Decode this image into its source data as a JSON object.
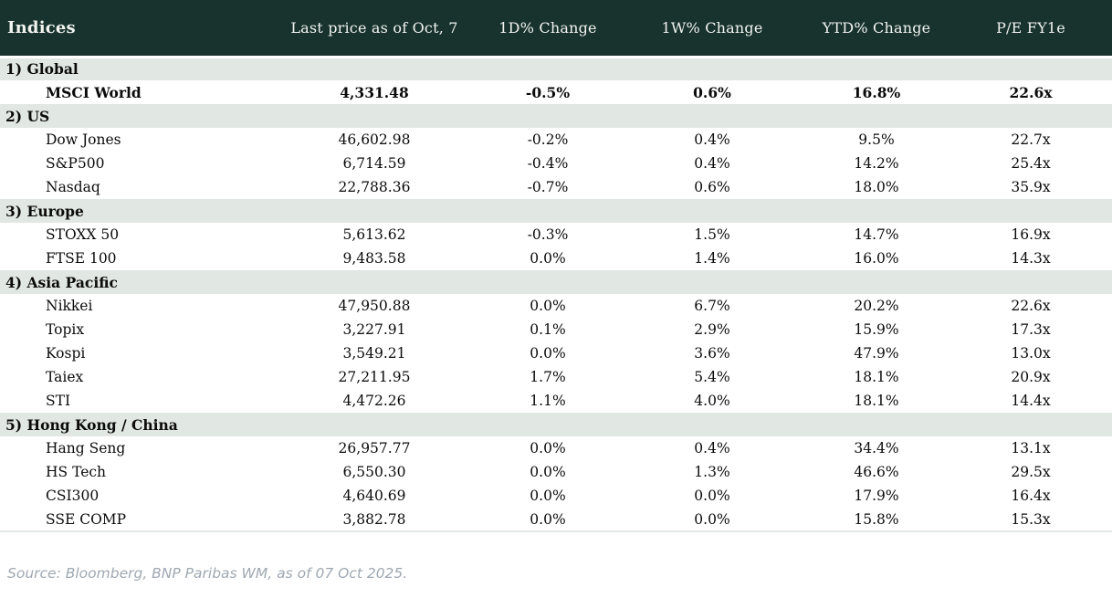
{
  "colors": {
    "header_bg": "#18332e",
    "header_text": "#f1f3ef",
    "section_bg": "#e1e7e3",
    "positive": "#008a28",
    "negative": "#c00010",
    "neutral": "#0b0b0b",
    "footer_text": "#9fa8b2"
  },
  "table": {
    "columns": [
      "Indices",
      "Last price as of Oct, 7",
      "1D% Change",
      "1W% Change",
      "YTD% Change",
      "P/E FY1e"
    ],
    "sections": [
      {
        "label": "1) Global",
        "rows": [
          {
            "name": "MSCI World",
            "bold": true,
            "last_price": "4,331.48",
            "d1": {
              "v": "-0.5%",
              "c": "neg"
            },
            "w1": {
              "v": "0.6%",
              "c": "pos"
            },
            "ytd": {
              "v": "16.8%",
              "c": "pos"
            },
            "pe": "22.6x"
          }
        ]
      },
      {
        "label": "2) US",
        "rows": [
          {
            "name": "Dow Jones",
            "bold": false,
            "last_price": "46,602.98",
            "d1": {
              "v": "-0.2%",
              "c": "neg"
            },
            "w1": {
              "v": "0.4%",
              "c": "pos"
            },
            "ytd": {
              "v": "9.5%",
              "c": "pos"
            },
            "pe": "22.7x"
          },
          {
            "name": "S&P500",
            "bold": false,
            "last_price": "6,714.59",
            "d1": {
              "v": "-0.4%",
              "c": "neg"
            },
            "w1": {
              "v": "0.4%",
              "c": "pos"
            },
            "ytd": {
              "v": "14.2%",
              "c": "pos"
            },
            "pe": "25.4x"
          },
          {
            "name": "Nasdaq",
            "bold": false,
            "last_price": "22,788.36",
            "d1": {
              "v": "-0.7%",
              "c": "neg"
            },
            "w1": {
              "v": "0.6%",
              "c": "pos"
            },
            "ytd": {
              "v": "18.0%",
              "c": "pos"
            },
            "pe": "35.9x"
          }
        ]
      },
      {
        "label": "3) Europe",
        "rows": [
          {
            "name": "STOXX 50",
            "bold": false,
            "last_price": "5,613.62",
            "d1": {
              "v": "-0.3%",
              "c": "neg"
            },
            "w1": {
              "v": "1.5%",
              "c": "pos"
            },
            "ytd": {
              "v": "14.7%",
              "c": "pos"
            },
            "pe": "16.9x"
          },
          {
            "name": "FTSE 100",
            "bold": false,
            "last_price": "9,483.58",
            "d1": {
              "v": "0.0%",
              "c": "pos"
            },
            "w1": {
              "v": "1.4%",
              "c": "pos"
            },
            "ytd": {
              "v": "16.0%",
              "c": "pos"
            },
            "pe": "14.3x"
          }
        ]
      },
      {
        "label": "4) Asia Pacific",
        "rows": [
          {
            "name": "Nikkei",
            "bold": false,
            "last_price": "47,950.88",
            "d1": {
              "v": "0.0%",
              "c": "pos"
            },
            "w1": {
              "v": "6.7%",
              "c": "pos"
            },
            "ytd": {
              "v": "20.2%",
              "c": "pos"
            },
            "pe": "22.6x"
          },
          {
            "name": "Topix",
            "bold": false,
            "last_price": "3,227.91",
            "d1": {
              "v": "0.1%",
              "c": "pos"
            },
            "w1": {
              "v": "2.9%",
              "c": "pos"
            },
            "ytd": {
              "v": "15.9%",
              "c": "pos"
            },
            "pe": "17.3x"
          },
          {
            "name": "Kospi",
            "bold": false,
            "last_price": "3,549.21",
            "d1": {
              "v": "0.0%",
              "c": "flat"
            },
            "w1": {
              "v": "3.6%",
              "c": "pos"
            },
            "ytd": {
              "v": "47.9%",
              "c": "pos"
            },
            "pe": "13.0x"
          },
          {
            "name": "Taiex",
            "bold": false,
            "last_price": "27,211.95",
            "d1": {
              "v": "1.7%",
              "c": "pos"
            },
            "w1": {
              "v": "5.4%",
              "c": "pos"
            },
            "ytd": {
              "v": "18.1%",
              "c": "pos"
            },
            "pe": "20.9x"
          },
          {
            "name": "STI",
            "bold": false,
            "last_price": "4,472.26",
            "d1": {
              "v": "1.1%",
              "c": "pos"
            },
            "w1": {
              "v": "4.0%",
              "c": "pos"
            },
            "ytd": {
              "v": "18.1%",
              "c": "pos"
            },
            "pe": "14.4x"
          }
        ]
      },
      {
        "label": "5) Hong Kong / China",
        "rows": [
          {
            "name": "Hang Seng",
            "bold": false,
            "last_price": "26,957.77",
            "d1": {
              "v": "0.0%",
              "c": "flat"
            },
            "w1": {
              "v": "0.4%",
              "c": "pos"
            },
            "ytd": {
              "v": "34.4%",
              "c": "pos"
            },
            "pe": "13.1x"
          },
          {
            "name": "HS Tech",
            "bold": false,
            "last_price": "6,550.30",
            "d1": {
              "v": "0.0%",
              "c": "flat"
            },
            "w1": {
              "v": "1.3%",
              "c": "pos"
            },
            "ytd": {
              "v": "46.6%",
              "c": "pos"
            },
            "pe": "29.5x"
          },
          {
            "name": "CSI300",
            "bold": false,
            "last_price": "4,640.69",
            "d1": {
              "v": "0.0%",
              "c": "flat"
            },
            "w1": {
              "v": "0.0%",
              "c": "flat"
            },
            "ytd": {
              "v": "17.9%",
              "c": "pos"
            },
            "pe": "16.4x"
          },
          {
            "name": "SSE COMP",
            "bold": false,
            "last_price": "3,882.78",
            "d1": {
              "v": "0.0%",
              "c": "flat"
            },
            "w1": {
              "v": "0.0%",
              "c": "flat"
            },
            "ytd": {
              "v": "15.8%",
              "c": "pos"
            },
            "pe": "15.3x"
          }
        ]
      }
    ]
  },
  "footer": {
    "source": "Source: Bloomberg, BNP Paribas WM, as of 07 Oct 2025."
  }
}
